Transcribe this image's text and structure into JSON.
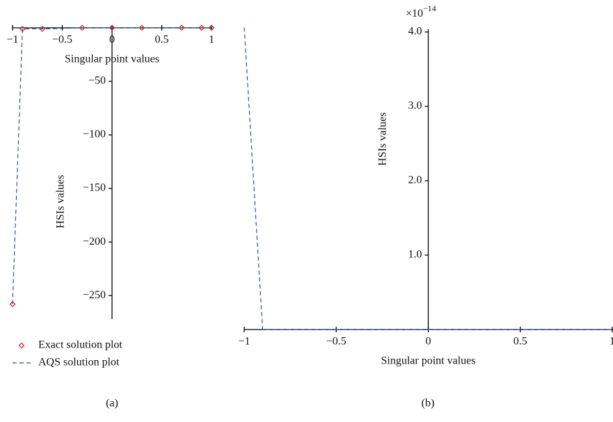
{
  "chart_data": [
    {
      "type": "line",
      "panel_label": "(a)",
      "xlabel": "Singular point values",
      "ylabel": "HSIs values",
      "x": [
        -1,
        -0.9,
        -0.7,
        -0.3,
        0,
        0.3,
        0.7,
        0.9,
        1
      ],
      "series": [
        {
          "name": "Exact solution plot",
          "color": "#d42a2a",
          "style": "markers",
          "values": [
            -258,
            -1,
            -1,
            0,
            0,
            0,
            0,
            0,
            0
          ]
        },
        {
          "name": "AQS solution plot",
          "color": "#2e4fa3",
          "style": "dashed",
          "values": [
            -258,
            -1,
            -1,
            0,
            0,
            0,
            0,
            0,
            0
          ]
        }
      ],
      "xlim": [
        -1,
        1
      ],
      "ylim": [
        -272,
        0
      ],
      "xticks": [
        {
          "value": -1,
          "label": "−1"
        },
        {
          "value": -0.5,
          "label": "−0.5"
        },
        0,
        0.5,
        1
      ],
      "yticks": [
        {
          "value": -50,
          "label": "−50"
        },
        {
          "value": -100,
          "label": "−100"
        },
        {
          "value": -150,
          "label": "−150"
        },
        {
          "value": -200,
          "label": "−200"
        },
        {
          "value": -250,
          "label": "−250"
        }
      ],
      "legend": "below"
    },
    {
      "type": "line",
      "panel_label": "(b)",
      "xlabel": "Singular point values",
      "ylabel": "HSIs values",
      "y_scale_base": "×10",
      "y_scale_exponent": "−14",
      "x": [
        -1,
        -0.9,
        -0.7,
        -0.3,
        0,
        0.3,
        0.7,
        0.9,
        1
      ],
      "series": [
        {
          "color": "#2e4fa3",
          "style": "dashed",
          "values": [
            4.06,
            0,
            0,
            0,
            0,
            0,
            0,
            0,
            0
          ]
        }
      ],
      "xlim": [
        -1,
        1
      ],
      "ylim": [
        0,
        4.0
      ],
      "xticks": [
        {
          "value": -1,
          "label": "−1"
        },
        {
          "value": -0.5,
          "label": "−0.5"
        },
        0,
        0.5,
        1
      ],
      "yticks": [
        {
          "value": 1,
          "label": "1.0"
        },
        {
          "value": 2,
          "label": "2.0"
        },
        {
          "value": 3,
          "label": "3.0"
        },
        {
          "value": 4,
          "label": "4.0"
        }
      ]
    }
  ]
}
